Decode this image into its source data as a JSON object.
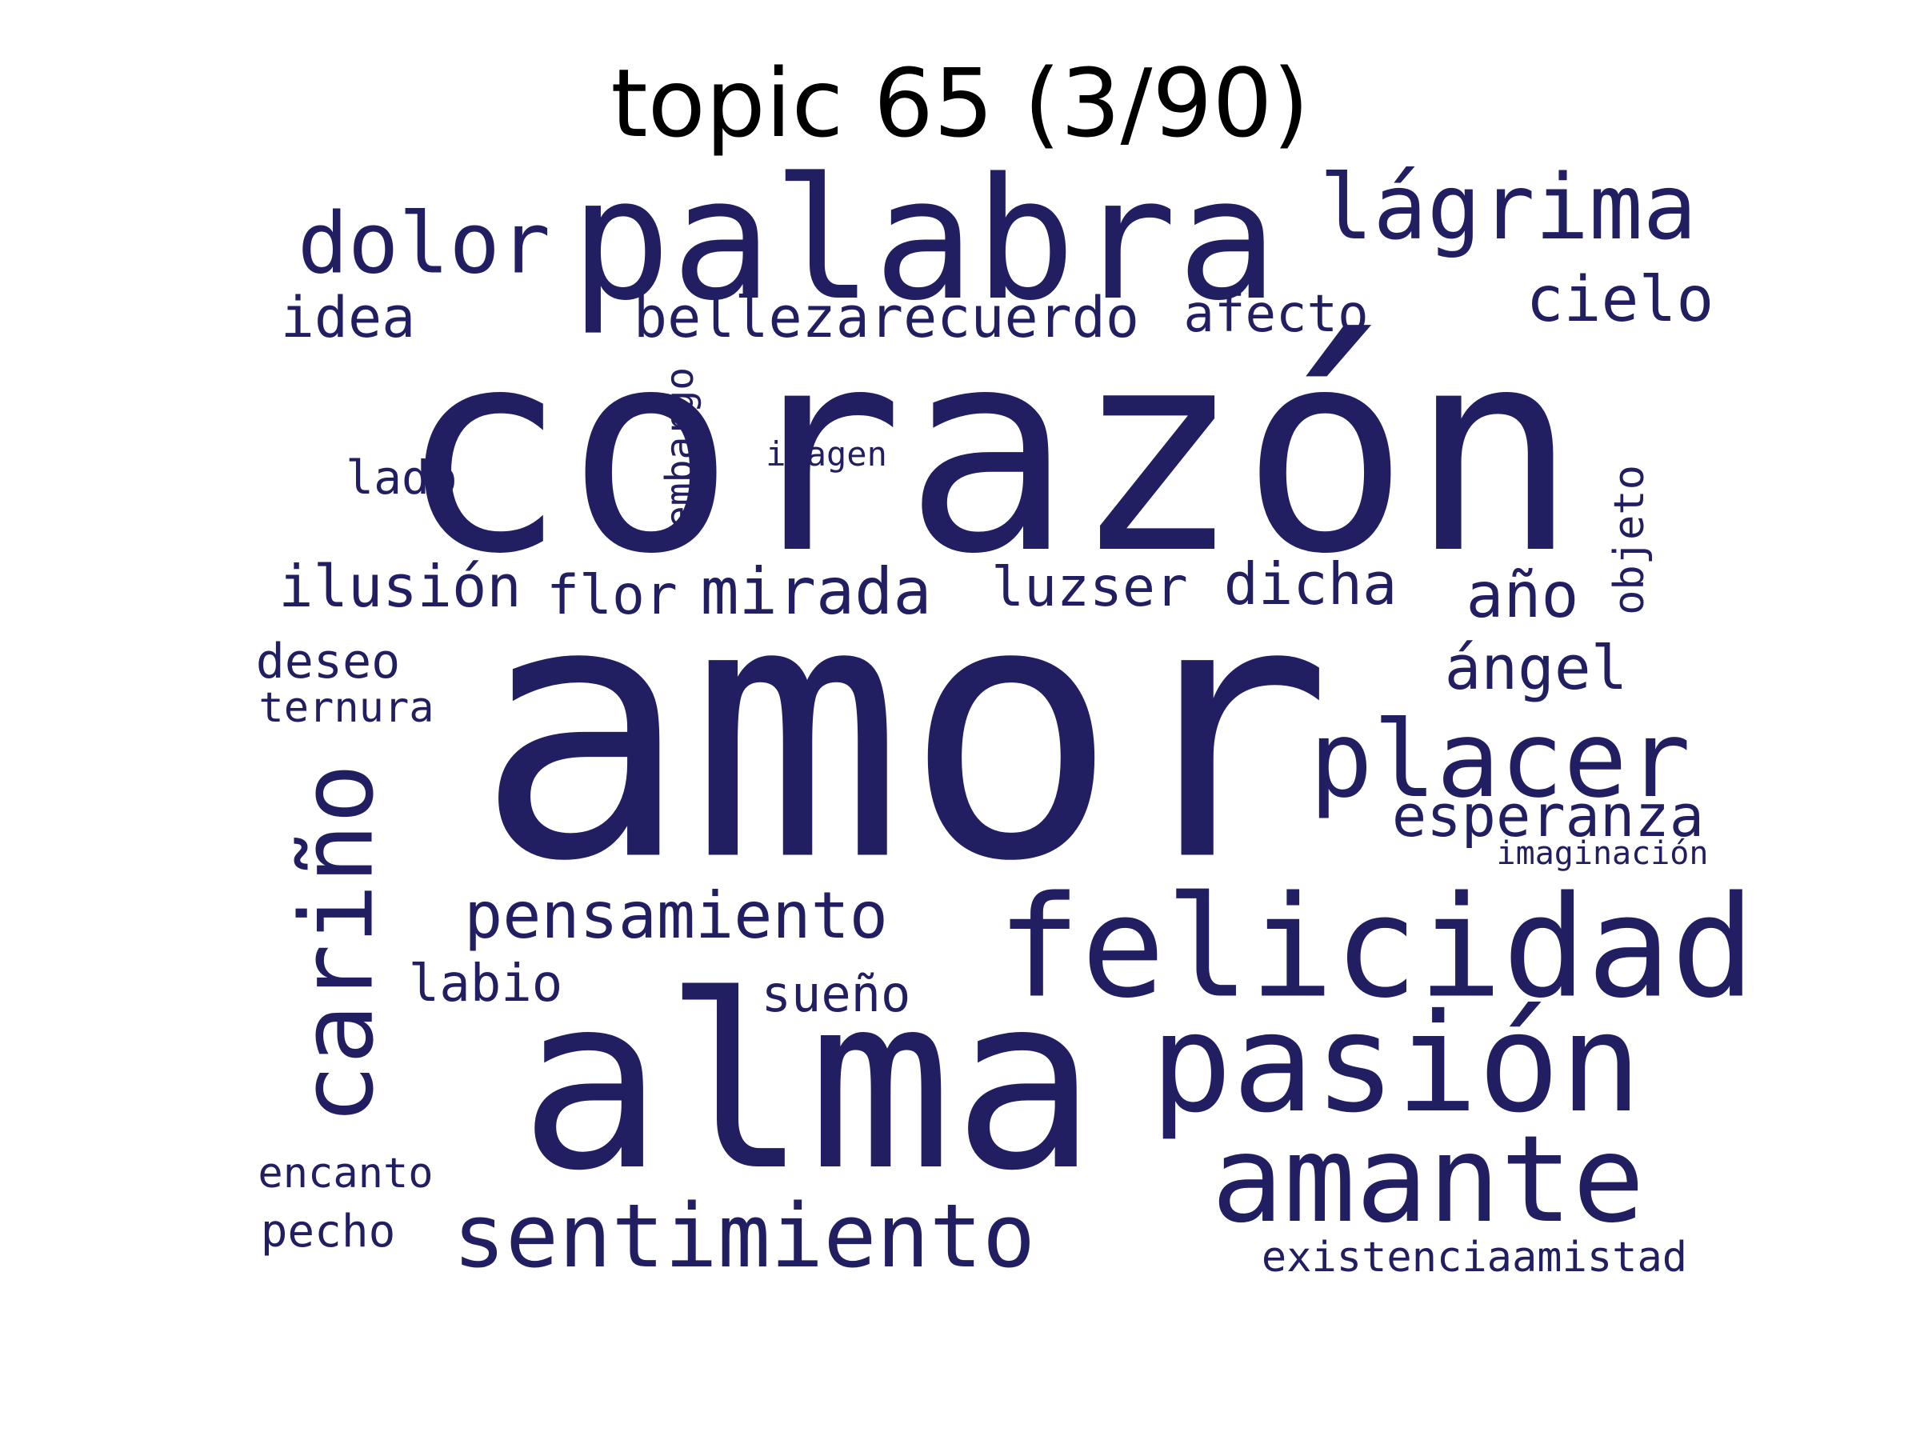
{
  "title": "topic 65 (3/90)",
  "colors": {
    "word": "#221e62",
    "title": "#000000",
    "background": "#ffffff"
  },
  "words": [
    "corazón",
    "amor",
    "alma",
    "palabra",
    "felicidad",
    "pasión",
    "amante",
    "placer",
    "cariño",
    "sentimiento",
    "lágrima",
    "dolor",
    "pensamiento",
    "mirada",
    "cielo",
    "esperanza",
    "ángel",
    "dicha",
    "año",
    "bellezarecuerdo",
    "ilusión",
    "afecto",
    "idea",
    "luzser",
    "flor",
    "sueño",
    "labio",
    "deseo",
    "lado",
    "embargo",
    "objeto",
    "existenciaamistad",
    "pecho",
    "encanto",
    "ternura",
    "imaginación",
    "imagen"
  ]
}
